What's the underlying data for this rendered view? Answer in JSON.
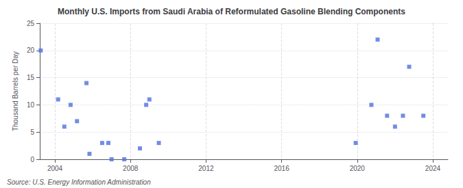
{
  "chart_data": {
    "type": "scatter",
    "title": "Monthly U.S. Imports from Saudi Arabia of Reformulated Gasoline Blending Components",
    "ylabel": "Thousand Barrels per Day",
    "annotations": [
      "Source: U.S. Energy Information Administration"
    ],
    "marker": "square",
    "x": [
      2003.25,
      2004.17,
      2004.5,
      2004.83,
      2005.17,
      2005.67,
      2005.83,
      2006.5,
      2006.83,
      2007.0,
      2007.67,
      2008.5,
      2008.83,
      2009.0,
      2009.5,
      2019.92,
      2020.75,
      2021.08,
      2021.58,
      2022.0,
      2022.42,
      2022.75,
      2023.5
    ],
    "values": [
      20,
      11,
      6,
      10,
      7,
      14,
      1,
      3,
      3,
      0,
      0,
      2,
      10,
      11,
      3,
      3,
      10,
      22,
      8,
      6,
      8,
      17,
      8
    ],
    "xlim": [
      2003.2,
      2024.8
    ],
    "xticks": [
      2004,
      2008,
      2012,
      2016,
      2020,
      2024
    ],
    "ylim": [
      0,
      25
    ],
    "yticks": [
      0,
      5,
      10,
      15,
      20,
      25
    ],
    "grid": true
  }
}
